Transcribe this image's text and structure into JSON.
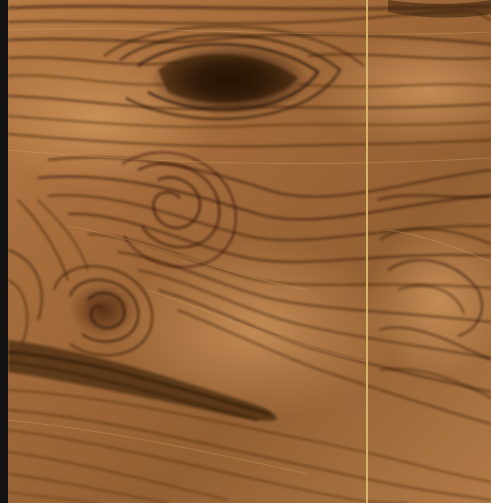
{
  "image": {
    "subject": "walnut-wood-grain",
    "colors": {
      "base": "#9a6236",
      "light": "#c78f59",
      "dark": "#3f2412",
      "deep": "#1c0e05",
      "seam": "#d9b56e",
      "edge": "#121212"
    }
  }
}
